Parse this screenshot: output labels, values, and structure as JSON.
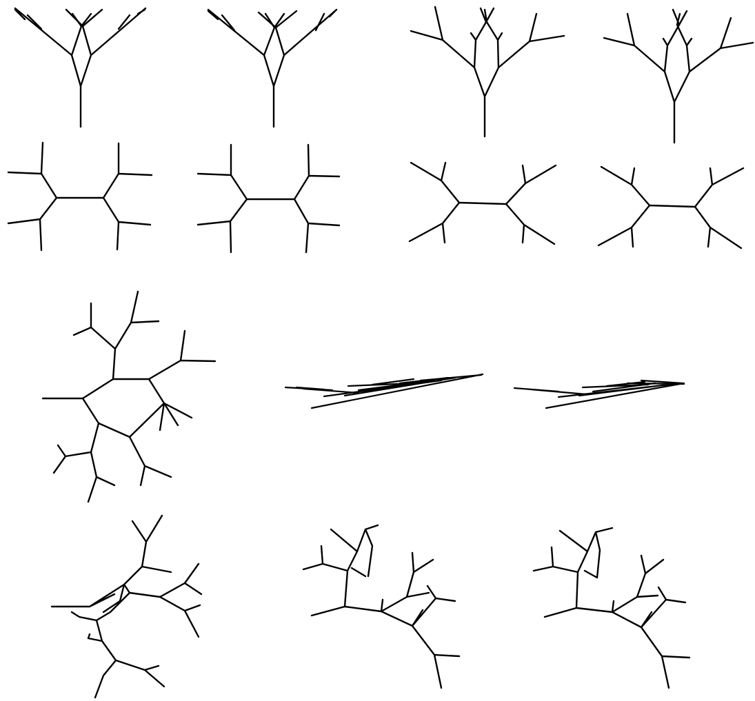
{
  "figure": {
    "background": "#ffffff",
    "line_color": "#000000",
    "text_labels": [],
    "panels": [
      {
        "id": "upright-tree-a1",
        "shape": "upright tree",
        "subpanels": 2
      },
      {
        "id": "upright-tree-a2",
        "shape": "upright tree",
        "subpanels": 2
      },
      {
        "id": "h-tree-b1",
        "shape": "horizontal H-tree",
        "subpanels": 2
      },
      {
        "id": "h-tree-b2",
        "shape": "splayed H-tree",
        "subpanels": 2
      },
      {
        "id": "curled-tree-c",
        "shape": "curled loop tree",
        "subpanels": 1
      },
      {
        "id": "flat-tree-d",
        "shape": "flattened tree",
        "subpanels": 2
      },
      {
        "id": "tangled-tree-e",
        "shape": "tangled tree",
        "subpanels": 1
      },
      {
        "id": "arched-tree-f",
        "shape": "arched tree",
        "subpanels": 2
      }
    ]
  }
}
